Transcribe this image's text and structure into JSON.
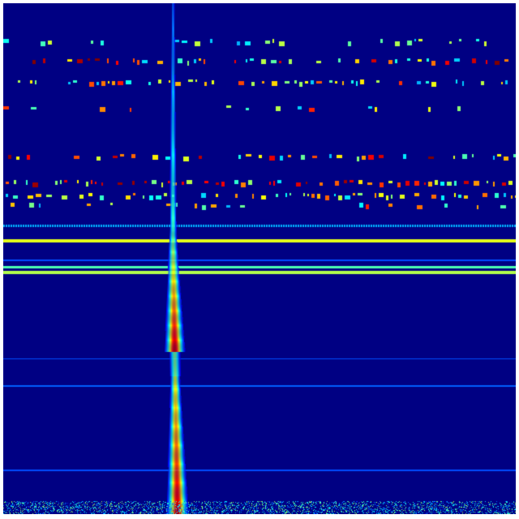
{
  "image": {
    "kind": "spectrogram-heatmap",
    "colormap": "jet",
    "colors": {
      "background": "#000083",
      "low": "#0000ff",
      "mid": "#00ffff",
      "mid_high": "#7fff7f",
      "high": "#ffff00",
      "peak": "#ff0000",
      "border": "#ffffff"
    }
  }
}
